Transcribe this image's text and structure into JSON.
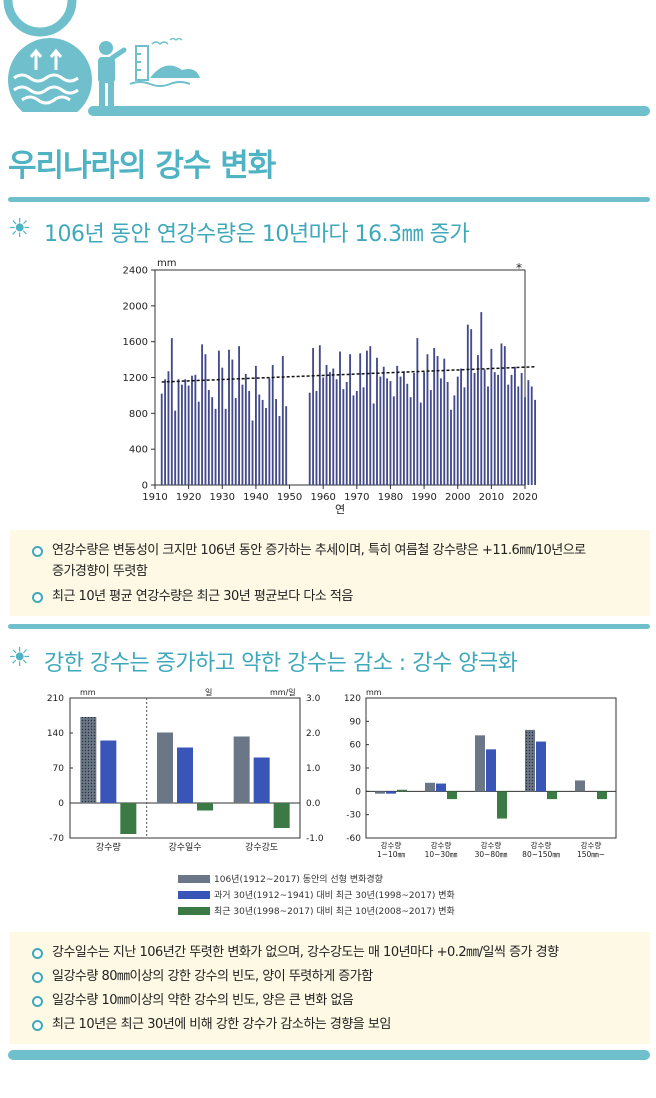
{
  "page": {
    "title": "우리나라의 강수 변화",
    "sections": [
      {
        "heading": "106년 동안 연강수량은 10년마다 16.3㎜ 증가",
        "bullets": [
          "연강수량은 변동성이 크지만 106년 동안 증가하는 추세이며, 특히 여름철 강수량은 +11.6㎜/10년으로",
          "증가경향이 뚜렷함",
          "최근 10년 평균 연강수량은 최근 30년 평균보다 다소 적음"
        ]
      },
      {
        "heading": "강한 강수는 증가하고 약한 강수는 감소 : 강수 양극화",
        "bullets": [
          "강수일수는 지난 106년간 뚜렷한 변화가 없으며, 강수강도는 매 10년마다 +0.2㎜/일씩 증가 경향",
          "일강수량 80㎜이상의 강한 강수의 빈도, 양이 뚜렷하게 증가함",
          "일강수량 10㎜이상의 약한 강수의 빈도, 양은 큰 변화 없음",
          "최근 10년은 최근 30년에 비해 강한 강수가 감소하는 경향을 보임"
        ]
      }
    ]
  },
  "colors": {
    "accent": "#4fb3c3",
    "bar_main": "#444b8c",
    "series1": "#6b7787",
    "series2": "#3a55b8",
    "series3": "#3c7a45",
    "note_bg": "#fdf9e4"
  },
  "chart_data": [
    {
      "type": "bar",
      "title": "",
      "ylabel": "mm",
      "xlabel": "연",
      "marker": "*",
      "ylim": [
        0,
        2400
      ],
      "yticks": [
        "0",
        "400",
        "800",
        "1200",
        "1600",
        "2000",
        "2400"
      ],
      "xticks": [
        "1910",
        "1920",
        "1930",
        "1940",
        "1950",
        "1960",
        "1970",
        "1980",
        "1990",
        "2000",
        "2010",
        "2020"
      ],
      "x_start": 1912,
      "values": [
        1020,
        1180,
        1270,
        1640,
        830,
        1180,
        1120,
        1180,
        1110,
        1220,
        1230,
        930,
        1570,
        1460,
        1060,
        980,
        850,
        1500,
        1310,
        850,
        1510,
        1400,
        970,
        1550,
        1120,
        1240,
        1050,
        720,
        1330,
        1010,
        950,
        860,
        1190,
        1340,
        960,
        770,
        1440,
        880,
        null,
        null,
        null,
        null,
        null,
        null,
        1030,
        1530,
        1050,
        1560,
        1200,
        1340,
        1260,
        1300,
        1180,
        1490,
        1070,
        1150,
        1460,
        1000,
        1050,
        1470,
        1090,
        1500,
        1550,
        910,
        1420,
        1210,
        1320,
        1190,
        1160,
        990,
        1330,
        1210,
        1270,
        1130,
        980,
        1250,
        1640,
        920,
        1260,
        1460,
        1060,
        1530,
        1440,
        1190,
        1410,
        1150,
        840,
        1000,
        1210,
        1300,
        1090,
        1790,
        1740,
        1250,
        1450,
        1930,
        1290,
        1100,
        1520,
        1260,
        1230,
        1580,
        1550,
        1120,
        1230,
        1320,
        1100,
        1250,
        980,
        1170,
        1100,
        950
      ],
      "trend": [
        1150,
        1320
      ]
    },
    {
      "type": "bar",
      "title": "",
      "left_unit": "mm",
      "center_unit": "일",
      "right_unit": "mm/일",
      "ylim": [
        -70,
        210
      ],
      "yticks_left": [
        "-70",
        "0",
        "70",
        "140",
        "210"
      ],
      "yticks_right": [
        "-1.0",
        "0.0",
        "1.0",
        "2.0",
        "3.0"
      ],
      "categories": [
        "강수량",
        "강수일수",
        "강수강도"
      ],
      "series": [
        {
          "name": "106년(1912~2017) 동안의 선형 변화경향",
          "values": [
            172,
            141,
            133
          ]
        },
        {
          "name": "과거 30년(1912~1941) 대비 최근 30년(1998~2017) 변화",
          "values": [
            125,
            111,
            91
          ]
        },
        {
          "name": "최근 30년(1998~2017) 대비 최근 10년(2008~2017) 변화",
          "values": [
            -62,
            -15,
            -50
          ]
        }
      ]
    },
    {
      "type": "bar",
      "title": "",
      "ylabel": "mm",
      "ylim": [
        -60,
        120
      ],
      "yticks": [
        "-60",
        "-30",
        "0",
        "30",
        "60",
        "90",
        "120"
      ],
      "categories": [
        [
          "강수량",
          "1~10㎜"
        ],
        [
          "강수량",
          "10~30㎜"
        ],
        [
          "강수량",
          "30~80㎜"
        ],
        [
          "강수량",
          "80~150㎜"
        ],
        [
          "강수량",
          "150㎜~"
        ]
      ],
      "series": [
        {
          "name": "106년(1912~2017) 동안의 선형 변화경향",
          "values": [
            -3,
            11,
            72,
            79,
            14
          ]
        },
        {
          "name": "과거 30년(1912~1941) 대비 최근 30년(1998~2017) 변화",
          "values": [
            -3,
            10,
            54,
            64,
            0
          ]
        },
        {
          "name": "최근 30년(1998~2017) 대비 최근 10년(2008~2017) 변화",
          "values": [
            2,
            -10,
            -35,
            -10,
            -10
          ]
        }
      ]
    }
  ]
}
